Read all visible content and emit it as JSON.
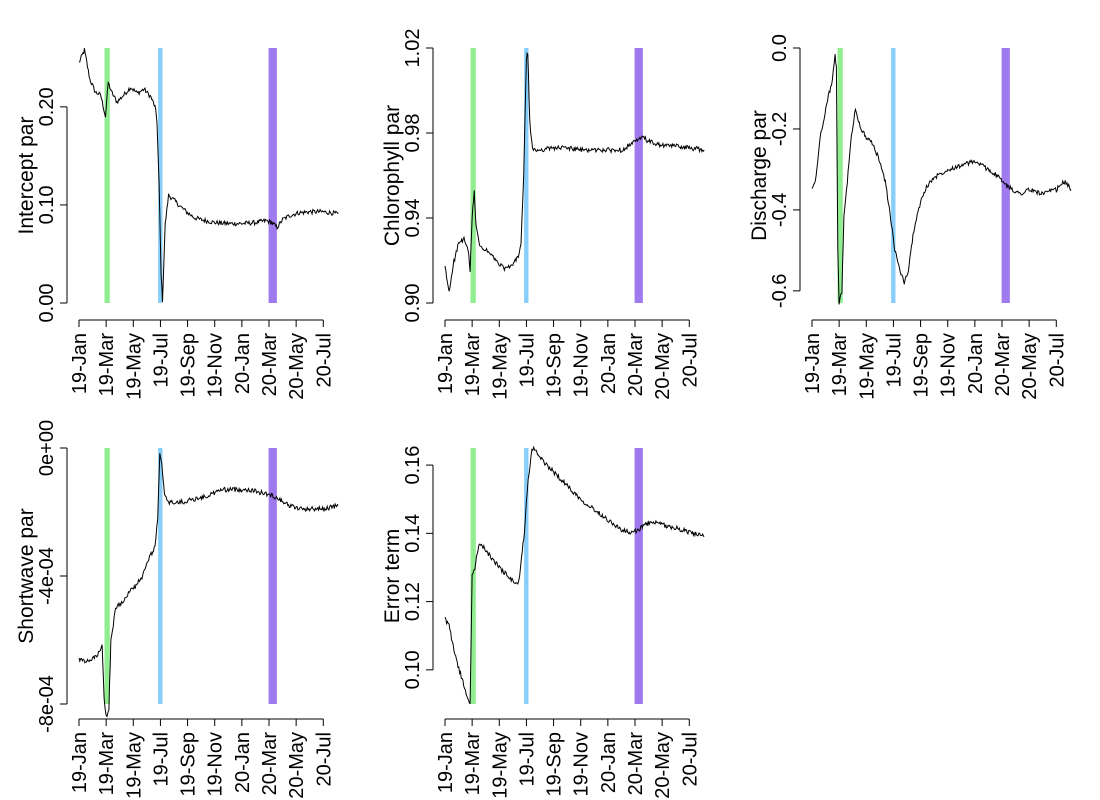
{
  "figure": {
    "x_tick_labels": [
      "19-Jan",
      "19-Mar",
      "19-May",
      "19-Jul",
      "19-Sep",
      "19-Nov",
      "20-Jan",
      "20-Mar",
      "20-May",
      "20-Jul"
    ],
    "bands": [
      {
        "start": 1.88,
        "end": 2.27,
        "color": "#90EE90"
      },
      {
        "start": 5.83,
        "end": 6.15,
        "color": "#87CEFA"
      },
      {
        "start": 13.97,
        "end": 14.58,
        "color": "#9F79EE"
      }
    ],
    "line_color": "#000000"
  },
  "chart_data": [
    {
      "type": "line",
      "title": "",
      "ylabel": "Intercept par",
      "xlabel": "",
      "x_unit": "months since 19-Jan",
      "xlim": [
        0,
        19.6
      ],
      "ylim": [
        0,
        0.26
      ],
      "yticks": [
        "0.00",
        "0.10",
        "0.20"
      ],
      "ytick_values": [
        0.0,
        0.1,
        0.2
      ],
      "points": [
        [
          0,
          0.245
        ],
        [
          0.4,
          0.258
        ],
        [
          0.8,
          0.228
        ],
        [
          1.2,
          0.215
        ],
        [
          1.6,
          0.212
        ],
        [
          1.95,
          0.19
        ],
        [
          2.15,
          0.225
        ],
        [
          2.4,
          0.215
        ],
        [
          2.8,
          0.205
        ],
        [
          3.3,
          0.212
        ],
        [
          3.8,
          0.22
        ],
        [
          4.3,
          0.214
        ],
        [
          4.8,
          0.218
        ],
        [
          5.3,
          0.21
        ],
        [
          5.6,
          0.2
        ],
        [
          5.75,
          0.185
        ],
        [
          5.9,
          0.12
        ],
        [
          6.05,
          0.03
        ],
        [
          6.15,
          0.003
        ],
        [
          6.35,
          0.08
        ],
        [
          6.6,
          0.11
        ],
        [
          7.0,
          0.105
        ],
        [
          7.5,
          0.098
        ],
        [
          8.0,
          0.092
        ],
        [
          8.5,
          0.087
        ],
        [
          9.0,
          0.085
        ],
        [
          10,
          0.082
        ],
        [
          11,
          0.081
        ],
        [
          12,
          0.081
        ],
        [
          13,
          0.082
        ],
        [
          13.8,
          0.084
        ],
        [
          14.2,
          0.082
        ],
        [
          14.6,
          0.077
        ],
        [
          15.0,
          0.085
        ],
        [
          15.5,
          0.089
        ],
        [
          16.2,
          0.092
        ],
        [
          17,
          0.093
        ],
        [
          18,
          0.093
        ],
        [
          19.1,
          0.091
        ]
      ]
    },
    {
      "type": "line",
      "title": "",
      "ylabel": "Chlorophyll par",
      "xlabel": "",
      "x_unit": "months since 19-Jan",
      "xlim": [
        0,
        19.6
      ],
      "ylim": [
        0.9,
        1.02
      ],
      "yticks": [
        "0.90",
        "0.94",
        "0.98",
        "1.02"
      ],
      "ytick_values": [
        0.9,
        0.94,
        0.98,
        1.02
      ],
      "points": [
        [
          0,
          0.917
        ],
        [
          0.3,
          0.905
        ],
        [
          0.6,
          0.918
        ],
        [
          1.0,
          0.928
        ],
        [
          1.4,
          0.93
        ],
        [
          1.7,
          0.925
        ],
        [
          1.85,
          0.915
        ],
        [
          2.0,
          0.94
        ],
        [
          2.15,
          0.953
        ],
        [
          2.3,
          0.935
        ],
        [
          2.6,
          0.926
        ],
        [
          3.0,
          0.925
        ],
        [
          3.5,
          0.922
        ],
        [
          4.0,
          0.918
        ],
        [
          4.5,
          0.916
        ],
        [
          5.0,
          0.918
        ],
        [
          5.4,
          0.922
        ],
        [
          5.6,
          0.928
        ],
        [
          5.8,
          0.96
        ],
        [
          6.0,
          1.015
        ],
        [
          6.1,
          1.018
        ],
        [
          6.25,
          0.985
        ],
        [
          6.45,
          0.972
        ],
        [
          7,
          0.972
        ],
        [
          8,
          0.973
        ],
        [
          9,
          0.973
        ],
        [
          10,
          0.972
        ],
        [
          11,
          0.972
        ],
        [
          12,
          0.972
        ],
        [
          13,
          0.972
        ],
        [
          13.8,
          0.975
        ],
        [
          14.3,
          0.977
        ],
        [
          14.6,
          0.978
        ],
        [
          15,
          0.976
        ],
        [
          16,
          0.974
        ],
        [
          17,
          0.974
        ],
        [
          18,
          0.973
        ],
        [
          19.1,
          0.972
        ]
      ]
    },
    {
      "type": "line",
      "title": "",
      "ylabel": "Discharge par",
      "xlabel": "",
      "x_unit": "months since 19-Jan",
      "xlim": [
        0,
        19.6
      ],
      "ylim": [
        -0.63,
        0.0
      ],
      "yticks": [
        "-0.6",
        "-0.4",
        "-0.2",
        "0.0"
      ],
      "ytick_values": [
        -0.6,
        -0.4,
        -0.2,
        0.0
      ],
      "points": [
        [
          0,
          -0.35
        ],
        [
          0.3,
          -0.32
        ],
        [
          0.6,
          -0.22
        ],
        [
          0.9,
          -0.17
        ],
        [
          1.2,
          -0.12
        ],
        [
          1.5,
          -0.08
        ],
        [
          1.7,
          -0.02
        ],
        [
          1.8,
          -0.05
        ],
        [
          1.9,
          -0.5
        ],
        [
          2.0,
          -0.63
        ],
        [
          2.2,
          -0.6
        ],
        [
          2.35,
          -0.42
        ],
        [
          2.6,
          -0.33
        ],
        [
          2.9,
          -0.22
        ],
        [
          3.2,
          -0.15
        ],
        [
          3.6,
          -0.2
        ],
        [
          4.0,
          -0.22
        ],
        [
          4.5,
          -0.24
        ],
        [
          5.0,
          -0.28
        ],
        [
          5.4,
          -0.33
        ],
        [
          5.8,
          -0.42
        ],
        [
          6.1,
          -0.5
        ],
        [
          6.5,
          -0.55
        ],
        [
          6.8,
          -0.58
        ],
        [
          7.1,
          -0.55
        ],
        [
          7.5,
          -0.45
        ],
        [
          8.0,
          -0.38
        ],
        [
          8.5,
          -0.34
        ],
        [
          9.0,
          -0.32
        ],
        [
          10,
          -0.3
        ],
        [
          11,
          -0.29
        ],
        [
          12,
          -0.28
        ],
        [
          13,
          -0.3
        ],
        [
          13.8,
          -0.32
        ],
        [
          14.3,
          -0.34
        ],
        [
          14.8,
          -0.35
        ],
        [
          15.3,
          -0.36
        ],
        [
          16,
          -0.35
        ],
        [
          17,
          -0.36
        ],
        [
          18,
          -0.35
        ],
        [
          18.6,
          -0.33
        ],
        [
          19.1,
          -0.35
        ]
      ]
    },
    {
      "type": "line",
      "title": "",
      "ylabel": "Shortwave par",
      "xlabel": "",
      "x_unit": "months since 19-Jan",
      "xlim": [
        0,
        19.6
      ],
      "ylim": [
        -0.0008,
        0.0
      ],
      "yticks": [
        "-8e-04",
        "-4e-04",
        "0e+00"
      ],
      "ytick_values": [
        -0.0008,
        -0.0004,
        0.0
      ],
      "points": [
        [
          0,
          -0.00066
        ],
        [
          0.5,
          -0.00067
        ],
        [
          1.0,
          -0.00066
        ],
        [
          1.5,
          -0.00064
        ],
        [
          1.7,
          -0.00062
        ],
        [
          1.85,
          -0.00078
        ],
        [
          2.0,
          -0.00084
        ],
        [
          2.2,
          -0.00082
        ],
        [
          2.35,
          -0.0006
        ],
        [
          2.7,
          -0.0005
        ],
        [
          3.2,
          -0.00048
        ],
        [
          3.7,
          -0.00045
        ],
        [
          4.2,
          -0.00043
        ],
        [
          4.7,
          -0.0004
        ],
        [
          5.2,
          -0.00034
        ],
        [
          5.6,
          -0.00031
        ],
        [
          5.8,
          -0.00022
        ],
        [
          5.95,
          -2e-05
        ],
        [
          6.1,
          -5e-05
        ],
        [
          6.3,
          -0.00015
        ],
        [
          6.6,
          -0.00017
        ],
        [
          7.5,
          -0.00017
        ],
        [
          8.5,
          -0.00016
        ],
        [
          9.5,
          -0.00015
        ],
        [
          10.5,
          -0.00013
        ],
        [
          11.5,
          -0.00013
        ],
        [
          12.5,
          -0.00013
        ],
        [
          13.5,
          -0.00014
        ],
        [
          14.3,
          -0.00015
        ],
        [
          14.8,
          -0.00016
        ],
        [
          15.5,
          -0.00018
        ],
        [
          16.3,
          -0.00019
        ],
        [
          17,
          -0.00019
        ],
        [
          18,
          -0.00019
        ],
        [
          19.1,
          -0.00018
        ]
      ]
    },
    {
      "type": "line",
      "title": "",
      "ylabel": "Error term",
      "xlabel": "",
      "x_unit": "months since 19-Jan",
      "xlim": [
        0,
        19.6
      ],
      "ylim": [
        0.09,
        0.165
      ],
      "yticks": [
        "0.10",
        "0.12",
        "0.14",
        "0.16"
      ],
      "ytick_values": [
        0.1,
        0.12,
        0.14,
        0.16
      ],
      "points": [
        [
          0,
          0.115
        ],
        [
          0.3,
          0.113
        ],
        [
          0.6,
          0.107
        ],
        [
          0.9,
          0.102
        ],
        [
          1.2,
          0.098
        ],
        [
          1.5,
          0.094
        ],
        [
          1.75,
          0.091
        ],
        [
          1.85,
          0.09
        ],
        [
          2.0,
          0.128
        ],
        [
          2.2,
          0.13
        ],
        [
          2.5,
          0.137
        ],
        [
          2.8,
          0.136
        ],
        [
          3.2,
          0.134
        ],
        [
          3.6,
          0.132
        ],
        [
          4.0,
          0.13
        ],
        [
          4.5,
          0.128
        ],
        [
          5.0,
          0.126
        ],
        [
          5.3,
          0.125
        ],
        [
          5.5,
          0.127
        ],
        [
          5.7,
          0.135
        ],
        [
          5.85,
          0.14
        ],
        [
          6.0,
          0.15
        ],
        [
          6.2,
          0.158
        ],
        [
          6.4,
          0.164
        ],
        [
          6.6,
          0.165
        ],
        [
          7.0,
          0.162
        ],
        [
          8,
          0.158
        ],
        [
          9,
          0.154
        ],
        [
          10,
          0.15
        ],
        [
          11,
          0.147
        ],
        [
          12,
          0.144
        ],
        [
          13,
          0.141
        ],
        [
          13.7,
          0.14
        ],
        [
          14.2,
          0.141
        ],
        [
          14.6,
          0.142
        ],
        [
          15,
          0.143
        ],
        [
          15.6,
          0.143
        ],
        [
          16.5,
          0.142
        ],
        [
          17.5,
          0.141
        ],
        [
          18.3,
          0.14
        ],
        [
          19.1,
          0.139
        ]
      ]
    }
  ]
}
